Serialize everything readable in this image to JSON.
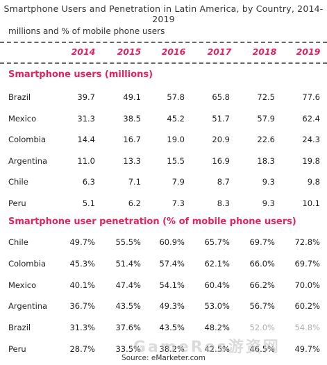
{
  "chart_data": {
    "type": "table",
    "title": "Smartphone Users and Penetration in Latin America, by Country, 2014-2019",
    "subtitle": "millions and % of mobile phone users",
    "columns": [
      "2014",
      "2015",
      "2016",
      "2017",
      "2018",
      "2019"
    ],
    "sections": [
      {
        "title": "Smartphone users (millions)",
        "rows": [
          {
            "label": "Brazil",
            "values": [
              "39.7",
              "49.1",
              "57.8",
              "65.8",
              "72.5",
              "77.6"
            ]
          },
          {
            "label": "Mexico",
            "values": [
              "31.3",
              "38.5",
              "45.2",
              "51.7",
              "57.9",
              "62.4"
            ]
          },
          {
            "label": "Colombia",
            "values": [
              "14.4",
              "16.7",
              "19.0",
              "20.9",
              "22.6",
              "24.3"
            ]
          },
          {
            "label": "Argentina",
            "values": [
              "11.0",
              "13.3",
              "15.5",
              "16.9",
              "18.3",
              "19.8"
            ]
          },
          {
            "label": "Chile",
            "values": [
              "6.3",
              "7.1",
              "7.9",
              "8.7",
              "9.3",
              "9.8"
            ]
          },
          {
            "label": "Peru",
            "values": [
              "5.1",
              "6.2",
              "7.3",
              "8.3",
              "9.3",
              "10.1"
            ]
          }
        ]
      },
      {
        "title": "Smartphone user penetration (% of mobile phone users)",
        "rows": [
          {
            "label": "Chile",
            "values": [
              "49.7%",
              "55.5%",
              "60.9%",
              "65.7%",
              "69.7%",
              "72.8%"
            ]
          },
          {
            "label": "Colombia",
            "values": [
              "45.3%",
              "51.4%",
              "57.4%",
              "62.1%",
              "66.0%",
              "69.7%"
            ]
          },
          {
            "label": "Mexico",
            "values": [
              "40.1%",
              "47.4%",
              "54.1%",
              "60.4%",
              "66.2%",
              "70.0%"
            ]
          },
          {
            "label": "Argentina",
            "values": [
              "36.7%",
              "43.5%",
              "49.3%",
              "53.0%",
              "56.7%",
              "60.2%"
            ]
          },
          {
            "label": "Brazil",
            "values": [
              "31.3%",
              "37.6%",
              "43.5%",
              "48.2%",
              "52.0%",
              "54.8%"
            ]
          },
          {
            "label": "Peru",
            "values": [
              "28.7%",
              "33.5%",
              "38.2%",
              "42.5%",
              "46.5%",
              "49.7%"
            ]
          }
        ]
      }
    ],
    "source": "Source: eMarketer.com",
    "watermark": "GameRes游资网"
  }
}
